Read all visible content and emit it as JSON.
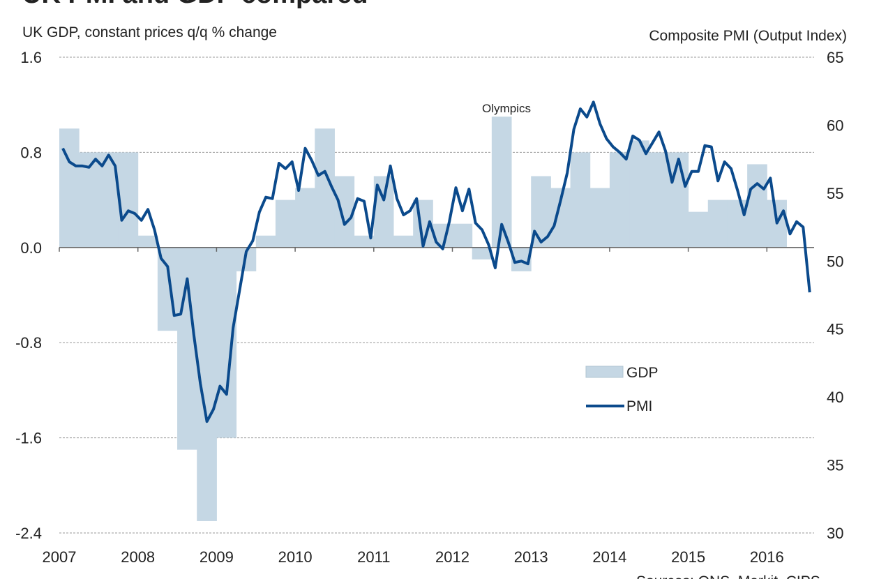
{
  "chart_data": {
    "type": "bar+line",
    "title": "UK PMI and GDP compared",
    "left_axis_label": "UK GDP, constant prices q/q % change",
    "right_axis_label": "Composite PMI (Output Index)",
    "source": "Sources: ONS, Markit, CIPS",
    "annotation": {
      "text": "Olympics",
      "at": "2012 Q3"
    },
    "x_ticks": [
      "2007",
      "2008",
      "2009",
      "2010",
      "2011",
      "2012",
      "2013",
      "2014",
      "2015",
      "2016"
    ],
    "x_range": [
      2007,
      2016.6
    ],
    "left_ylim": [
      -2.4,
      1.6
    ],
    "left_ticks": [
      "1.6",
      "0.8",
      "0.0",
      "-0.8",
      "-1.6",
      "-2.4"
    ],
    "left_tick_values": [
      1.6,
      0.8,
      0.0,
      -0.8,
      -1.6,
      -2.4
    ],
    "right_ylim": [
      30,
      65
    ],
    "right_ticks": [
      "65",
      "60",
      "55",
      "50",
      "45",
      "40",
      "35",
      "30"
    ],
    "right_tick_values": [
      65,
      60,
      55,
      50,
      45,
      40,
      35,
      30
    ],
    "grid": true,
    "legend": {
      "placement": "right-middle",
      "entries": [
        "GDP",
        "PMI"
      ]
    },
    "colors": {
      "gdp": "#c5d7e4",
      "pmi": "#0b4a8c",
      "grid": "#999999",
      "zero": "#666666"
    },
    "series": [
      {
        "name": "GDP",
        "type": "bar",
        "axis": "left",
        "frequency": "quarterly",
        "start": "2007 Q1",
        "values": [
          1.0,
          0.8,
          0.8,
          0.8,
          0.1,
          -0.7,
          -1.7,
          -2.3,
          -1.6,
          -0.2,
          0.1,
          0.4,
          0.5,
          1.0,
          0.6,
          0.1,
          0.6,
          0.1,
          0.4,
          0.2,
          0.2,
          -0.1,
          1.1,
          -0.2,
          0.6,
          0.5,
          0.8,
          0.5,
          0.8,
          0.9,
          0.8,
          0.8,
          0.3,
          0.4,
          0.4,
          0.7,
          0.4
        ]
      },
      {
        "name": "PMI",
        "type": "line",
        "axis": "right",
        "frequency": "monthly",
        "start": "2007-01",
        "values": [
          58.3,
          57.3,
          57.0,
          57.0,
          56.9,
          57.5,
          57.0,
          57.8,
          57.0,
          53.0,
          53.7,
          53.5,
          53.0,
          53.8,
          52.3,
          50.2,
          49.6,
          46.0,
          46.1,
          48.7,
          44.6,
          41.0,
          38.2,
          39.1,
          40.8,
          40.2,
          45.1,
          47.9,
          50.7,
          51.5,
          53.6,
          54.7,
          54.6,
          57.2,
          56.8,
          57.3,
          55.2,
          58.3,
          57.4,
          56.3,
          56.6,
          55.5,
          54.5,
          52.7,
          53.2,
          54.6,
          54.4,
          51.7,
          55.6,
          54.5,
          57.0,
          54.6,
          53.4,
          53.7,
          54.6,
          51.1,
          52.9,
          51.4,
          50.9,
          52.9,
          55.4,
          53.7,
          55.3,
          52.8,
          52.3,
          51.2,
          49.5,
          52.7,
          51.4,
          49.9,
          50.0,
          49.8,
          52.2,
          51.4,
          51.8,
          52.6,
          54.5,
          56.5,
          59.7,
          61.2,
          60.6,
          61.7,
          60.1,
          59.0,
          58.4,
          58.0,
          57.5,
          59.2,
          58.9,
          57.9,
          58.7,
          59.5,
          58.1,
          55.8,
          57.5,
          55.5,
          56.6,
          56.6,
          58.5,
          58.4,
          55.9,
          57.3,
          56.8,
          55.2,
          53.4,
          55.3,
          55.7,
          55.3,
          56.1,
          52.8,
          53.7,
          52.0,
          52.9,
          52.5,
          47.7
        ]
      }
    ]
  }
}
